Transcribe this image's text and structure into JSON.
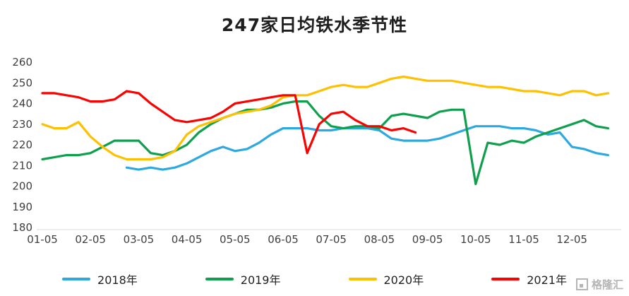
{
  "title": "247家日均铁水季节性",
  "watermark": "格隆汇",
  "chart_data": {
    "type": "line",
    "title": "247家日均铁水季节性",
    "xlabel": "",
    "ylabel": "",
    "ylim": [
      180,
      260
    ],
    "yticks": [
      180,
      190,
      200,
      210,
      220,
      230,
      240,
      250,
      260
    ],
    "x_ticks": [
      "01-05",
      "02-05",
      "03-05",
      "04-05",
      "05-05",
      "06-05",
      "07-05",
      "08-05",
      "09-05",
      "10-05",
      "11-05",
      "12-05"
    ],
    "x_unit": "months since 01-05, weekly samples (step = 0.25 month)",
    "grid": false,
    "legend_position": "bottom",
    "series": [
      {
        "name": "2018年",
        "color": "#2DA8E0",
        "start": 1.75,
        "step": 0.25,
        "values": [
          209,
          208,
          209,
          208,
          209,
          211,
          214,
          217,
          219,
          217,
          218,
          221,
          225,
          228,
          228,
          228,
          227,
          227,
          228,
          228,
          228,
          227,
          223,
          222,
          222,
          222,
          223,
          225,
          227,
          229,
          229,
          229,
          228,
          228,
          227,
          225,
          226,
          219,
          218,
          216,
          215
        ]
      },
      {
        "name": "2019年",
        "color": "#0FA04E",
        "start": 0,
        "step": 0.25,
        "values": [
          213,
          214,
          215,
          215,
          216,
          219,
          222,
          222,
          222,
          216,
          215,
          217,
          220,
          226,
          230,
          233,
          235,
          237,
          237,
          238,
          240,
          241,
          241,
          234,
          229,
          228,
          229,
          229,
          228,
          234,
          235,
          234,
          233,
          236,
          237,
          237,
          201,
          221,
          220,
          222,
          221,
          224,
          226,
          228,
          230,
          232,
          229,
          228
        ]
      },
      {
        "name": "2020年",
        "color": "#FFC000",
        "start": 0,
        "step": 0.25,
        "values": [
          230,
          228,
          228,
          231,
          224,
          219,
          215,
          213,
          213,
          213,
          214,
          217,
          225,
          229,
          231,
          233,
          235,
          236,
          237,
          239,
          243,
          244,
          244,
          246,
          248,
          249,
          248,
          248,
          250,
          252,
          253,
          252,
          251,
          251,
          251,
          250,
          249,
          248,
          248,
          247,
          246,
          246,
          245,
          244,
          246,
          246,
          244,
          245
        ]
      },
      {
        "name": "2021年",
        "color": "#FE0000",
        "start": 0,
        "step": 0.25,
        "values": [
          245,
          245,
          244,
          243,
          241,
          241,
          242,
          246,
          245,
          240,
          236,
          232,
          231,
          232,
          233,
          236,
          240,
          241,
          242,
          243,
          244,
          244,
          216,
          230,
          235,
          236,
          232,
          229,
          229,
          227,
          228,
          226
        ]
      }
    ]
  }
}
